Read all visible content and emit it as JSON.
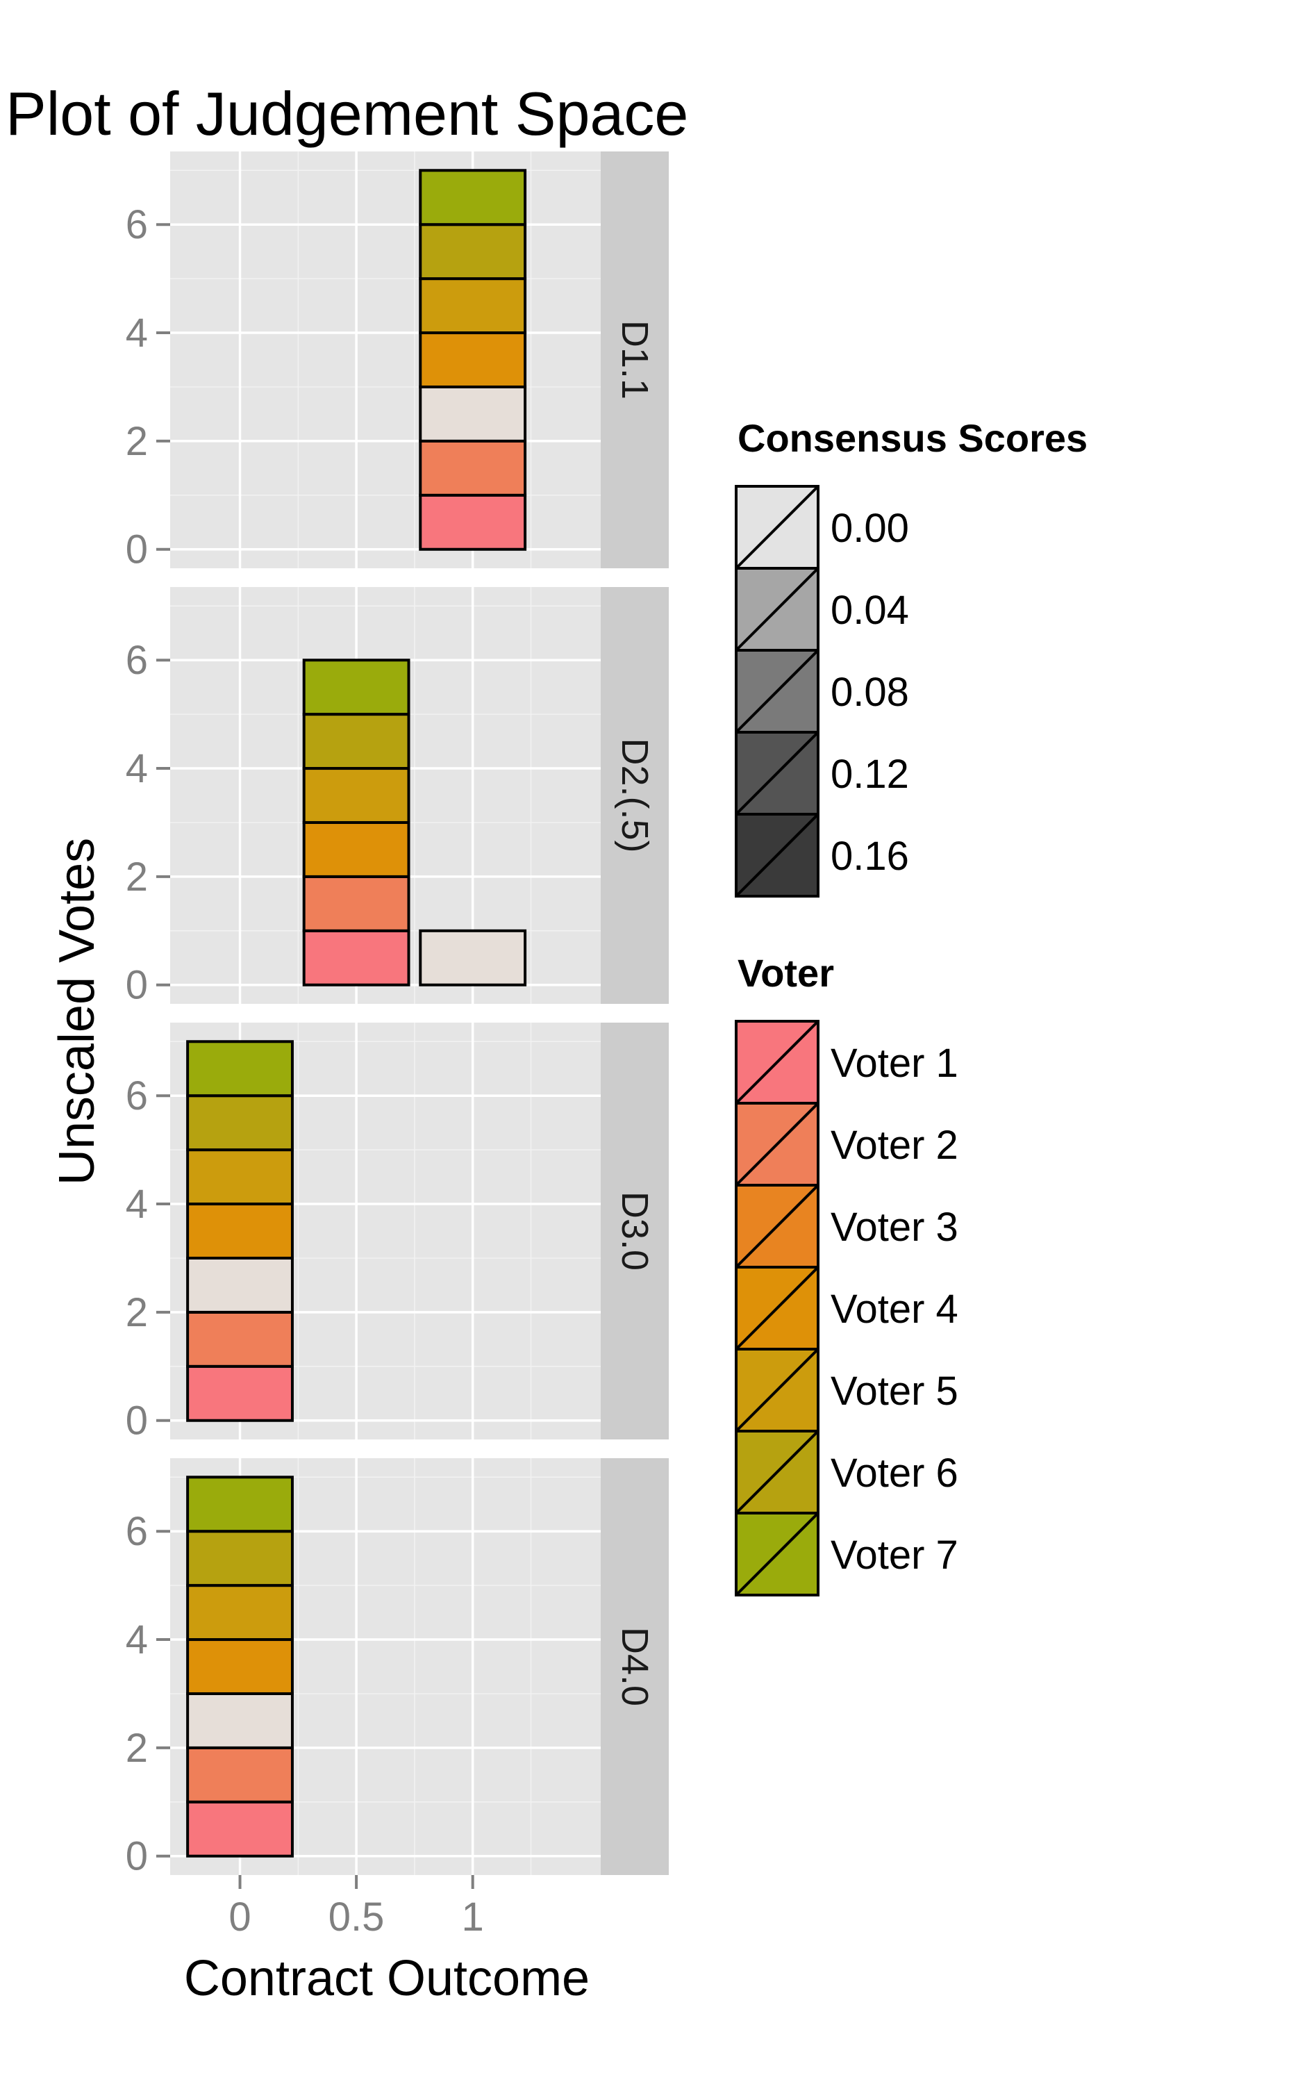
{
  "chart_data": {
    "type": "bar",
    "title": "Plot of Judgement Space",
    "xlabel": "Contract Outcome",
    "ylabel": "Unscaled Votes",
    "x_ticks": [
      "0",
      "0.5",
      "1"
    ],
    "x_tick_values": [
      0,
      0.5,
      1
    ],
    "xlim": [
      -0.3,
      1.55
    ],
    "y_ticks": [
      "0",
      "2",
      "4",
      "6"
    ],
    "y_tick_values": [
      0,
      2,
      4,
      6
    ],
    "ylim": [
      -0.35,
      7.35
    ],
    "bar_width": 0.45,
    "grid": true,
    "legend_position": "right",
    "panels": [
      {
        "label": "D1.1",
        "stacks": [
          {
            "x": 1,
            "segments": [
              {
                "voter": "Voter 1",
                "value": 1,
                "consensus": false
              },
              {
                "voter": "Voter 2",
                "value": 1,
                "consensus": false
              },
              {
                "voter": "Voter 3",
                "value": 1,
                "consensus": true
              },
              {
                "voter": "Voter 4",
                "value": 1,
                "consensus": false
              },
              {
                "voter": "Voter 5",
                "value": 1,
                "consensus": false
              },
              {
                "voter": "Voter 6",
                "value": 1,
                "consensus": false
              },
              {
                "voter": "Voter 7",
                "value": 1,
                "consensus": false
              }
            ]
          }
        ]
      },
      {
        "label": "D2.(.5)",
        "stacks": [
          {
            "x": 0.5,
            "segments": [
              {
                "voter": "Voter 1",
                "value": 1,
                "consensus": false
              },
              {
                "voter": "Voter 2",
                "value": 1,
                "consensus": false
              },
              {
                "voter": "Voter 4",
                "value": 1,
                "consensus": false
              },
              {
                "voter": "Voter 5",
                "value": 1,
                "consensus": false
              },
              {
                "voter": "Voter 6",
                "value": 1,
                "consensus": false
              },
              {
                "voter": "Voter 7",
                "value": 1,
                "consensus": false
              }
            ]
          },
          {
            "x": 1,
            "segments": [
              {
                "voter": "Voter 3",
                "value": 1,
                "consensus": true
              }
            ]
          }
        ]
      },
      {
        "label": "D3.0",
        "stacks": [
          {
            "x": 0,
            "segments": [
              {
                "voter": "Voter 1",
                "value": 1,
                "consensus": false
              },
              {
                "voter": "Voter 2",
                "value": 1,
                "consensus": false
              },
              {
                "voter": "Voter 3",
                "value": 1,
                "consensus": true
              },
              {
                "voter": "Voter 4",
                "value": 1,
                "consensus": false
              },
              {
                "voter": "Voter 5",
                "value": 1,
                "consensus": false
              },
              {
                "voter": "Voter 6",
                "value": 1,
                "consensus": false
              },
              {
                "voter": "Voter 7",
                "value": 1,
                "consensus": false
              }
            ]
          }
        ]
      },
      {
        "label": "D4.0",
        "stacks": [
          {
            "x": 0,
            "segments": [
              {
                "voter": "Voter 1",
                "value": 1,
                "consensus": false
              },
              {
                "voter": "Voter 2",
                "value": 1,
                "consensus": false
              },
              {
                "voter": "Voter 3",
                "value": 1,
                "consensus": true
              },
              {
                "voter": "Voter 4",
                "value": 1,
                "consensus": false
              },
              {
                "voter": "Voter 5",
                "value": 1,
                "consensus": false
              },
              {
                "voter": "Voter 6",
                "value": 1,
                "consensus": false
              },
              {
                "voter": "Voter 7",
                "value": 1,
                "consensus": false
              }
            ]
          }
        ]
      }
    ],
    "legends": [
      {
        "title": "Consensus Scores",
        "items": [
          {
            "label": "0.00",
            "color": "#e3e3e3"
          },
          {
            "label": "0.04",
            "color": "#a6a6a6"
          },
          {
            "label": "0.08",
            "color": "#7a7a7a"
          },
          {
            "label": "0.12",
            "color": "#545454"
          },
          {
            "label": "0.16",
            "color": "#3a3a3a"
          }
        ]
      },
      {
        "title": "Voter",
        "items": [
          {
            "label": "Voter 1",
            "color": "#f8767d"
          },
          {
            "label": "Voter 2",
            "color": "#ef7f59"
          },
          {
            "label": "Voter 3",
            "color": "#e88421"
          },
          {
            "label": "Voter 4",
            "color": "#de9108"
          },
          {
            "label": "Voter 5",
            "color": "#cc9c0d"
          },
          {
            "label": "Voter 6",
            "color": "#b6a210"
          },
          {
            "label": "Voter 7",
            "color": "#9aab0c"
          }
        ]
      }
    ],
    "consensus_fill": "#e6ded8"
  }
}
